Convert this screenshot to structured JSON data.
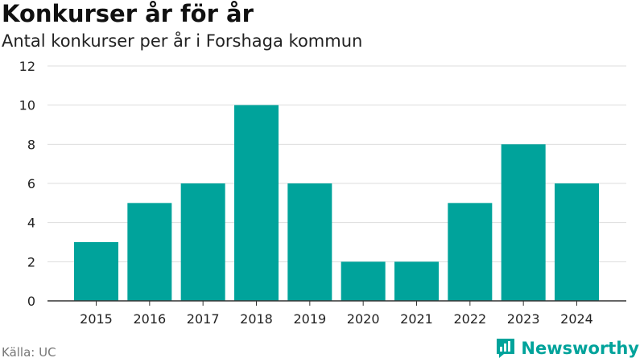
{
  "header": {
    "title": "Konkurser år för år",
    "subtitle": "Antal konkurser per år i Forshaga kommun"
  },
  "footer": {
    "source": "Källa: UC",
    "brand": "Newsworthy",
    "brand_icon": "bar-chart-speech-icon"
  },
  "colors": {
    "bar": "#00a39b",
    "brand": "#00a39b",
    "grid": "#dddddd",
    "axis": "#333333"
  },
  "chart_data": {
    "type": "bar",
    "title": "Konkurser år för år",
    "subtitle": "Antal konkurser per år i Forshaga kommun",
    "xlabel": "",
    "ylabel": "",
    "categories": [
      "2015",
      "2016",
      "2017",
      "2018",
      "2019",
      "2020",
      "2021",
      "2022",
      "2023",
      "2024"
    ],
    "values": [
      3,
      5,
      6,
      10,
      6,
      2,
      2,
      5,
      8,
      6
    ],
    "ylim": [
      0,
      12
    ],
    "yticks": [
      0,
      2,
      4,
      6,
      8,
      10,
      12
    ],
    "grid": true,
    "legend": "none"
  }
}
